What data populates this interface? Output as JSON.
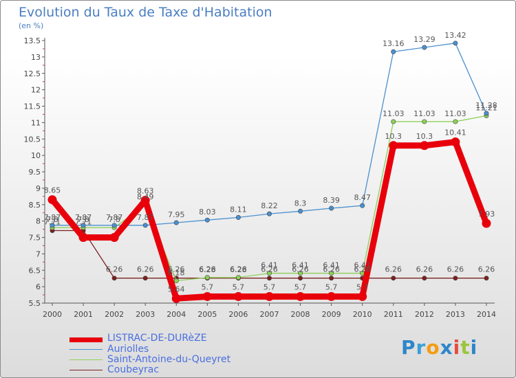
{
  "header": {
    "title": "Evolution du Taux de Taxe d'Habitation",
    "subtitle": "(en %)"
  },
  "logo": {
    "letters": [
      "P",
      "r",
      "o",
      "x",
      "i",
      "t",
      "i"
    ],
    "colors": [
      "#2e86c9",
      "#3aa0d8",
      "#f39c12",
      "#2e86c9",
      "#e74c3c",
      "#9bc53d",
      "#2e86c9"
    ]
  },
  "chart_data": {
    "type": "line",
    "title": "Evolution du Taux de Taxe d'Habitation",
    "subtitle": "(en %)",
    "x": [
      2000,
      2001,
      2002,
      2003,
      2004,
      2005,
      2006,
      2007,
      2008,
      2009,
      2010,
      2011,
      2012,
      2013,
      2014
    ],
    "ylim": [
      5.5,
      13.5
    ],
    "yticks": [
      5.5,
      6,
      6.5,
      7,
      7.5,
      8,
      8.5,
      9,
      9.5,
      10,
      10.5,
      11,
      11.5,
      12,
      12.5,
      13,
      13.5
    ],
    "grid": false,
    "legend_position": "bottom-left",
    "series": [
      {
        "name": "LISTRAC-DE-DURèZE",
        "color": "#e8000b",
        "values": [
          8.65,
          7.5,
          7.5,
          8.63,
          5.64,
          5.7,
          5.7,
          5.7,
          5.7,
          5.7,
          5.7,
          10.3,
          10.3,
          10.41,
          7.93
        ],
        "labels": [
          "8.65",
          "",
          "",
          "8.63",
          "5.64",
          "5.7",
          "5.7",
          "5.7",
          "5.7",
          "5.7",
          "5.7",
          "10.3",
          "10.3",
          "10.41",
          "7.93"
        ]
      },
      {
        "name": "Auriolles",
        "color": "#4a90d0",
        "values": [
          7.87,
          7.87,
          7.87,
          7.87,
          7.95,
          8.03,
          8.11,
          8.22,
          8.3,
          8.39,
          8.47,
          13.16,
          13.29,
          13.42,
          11.28
        ],
        "labels": [
          "7.87",
          "7.87",
          "7.87",
          "7.87",
          "7.95",
          "8.03",
          "8.11",
          "8.22",
          "8.3",
          "8.39",
          "8.47",
          "13.16",
          "13.29",
          "13.42",
          "11.28"
        ]
      },
      {
        "name": "Saint-Antoine-du-Queyret",
        "color": "#8ed057",
        "values": [
          7.8,
          7.8,
          7.8,
          8.49,
          6.18,
          6.28,
          6.28,
          6.41,
          6.41,
          6.41,
          6.41,
          11.03,
          11.03,
          11.03,
          11.21
        ],
        "labels": [
          "7.8",
          "7.8",
          "7.8",
          "8.49",
          "6.18",
          "6.28",
          "6.28",
          "6.41",
          "6.41",
          "6.41",
          "6.41",
          "11.03",
          "11.03",
          "11.03",
          "11.21"
        ]
      },
      {
        "name": "Coubeyrac",
        "color": "#7a2020",
        "values": [
          7.71,
          7.71,
          6.26,
          6.26,
          6.26,
          6.26,
          6.26,
          6.26,
          6.26,
          6.26,
          6.26,
          6.26,
          6.26,
          6.26,
          6.26
        ],
        "labels": [
          "7.71",
          "7.71",
          "6.26",
          "6.26",
          "6.26",
          "6.26",
          "6.26",
          "6.26",
          "6.26",
          "6.26",
          "6.26",
          "6.26",
          "6.26",
          "6.26",
          "6.26"
        ]
      }
    ]
  }
}
